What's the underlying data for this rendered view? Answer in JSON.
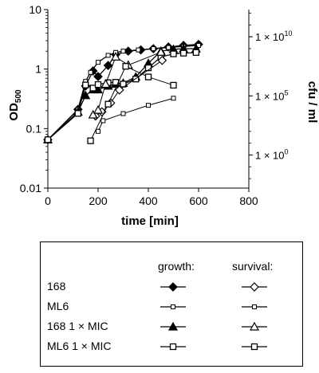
{
  "chart_data": {
    "type": "line",
    "xlabel": "time [min]",
    "ylabel_left": "OD",
    "ylabel_left_sub": "500",
    "ylabel_right": "cfu / ml",
    "xlim": [
      0,
      800
    ],
    "ylim_left": [
      0.01,
      10
    ],
    "left_scale": "log",
    "right_axis_log10_range": [
      -2.8,
      12.3
    ],
    "x_ticks": [
      "0",
      "200",
      "400",
      "600",
      "800"
    ],
    "y_ticks_left": [
      {
        "value": 10,
        "label": "10"
      },
      {
        "value": 1,
        "label": "1"
      },
      {
        "value": 0.1,
        "label": "0.1"
      },
      {
        "value": 0.01,
        "label": "0.01"
      }
    ],
    "y_ticks_right": [
      {
        "log10": 10,
        "base": "1 × 10",
        "exp": "10"
      },
      {
        "log10": 5,
        "base": "1 × 10",
        "exp": "5"
      },
      {
        "log10": 0,
        "base": "1 × 10",
        "exp": "0"
      }
    ],
    "grid": false,
    "series": [
      {
        "marker": "diamond-filled",
        "axis": "left",
        "x": [
          0,
          120,
          150,
          180,
          200,
          240,
          270,
          320,
          370,
          420,
          480,
          540,
          600
        ],
        "y": [
          0.065,
          0.21,
          0.52,
          0.93,
          0.75,
          1.15,
          1.75,
          2.0,
          2.1,
          2.2,
          2.35,
          2.5,
          2.6
        ]
      },
      {
        "marker": "square-open-small",
        "axis": "left",
        "x": [
          0,
          120,
          150,
          170,
          200,
          240,
          270,
          300,
          360,
          420,
          480,
          540,
          600
        ],
        "y": [
          0.065,
          0.21,
          0.62,
          0.88,
          1.3,
          1.7,
          1.9,
          2.0,
          2.1,
          2.2,
          2.3,
          2.4,
          2.5
        ]
      },
      {
        "marker": "triangle-filled",
        "axis": "left",
        "x": [
          0,
          120,
          150,
          180,
          200,
          240,
          270,
          300,
          350,
          400,
          450,
          500,
          540,
          590
        ],
        "y": [
          0.065,
          0.19,
          0.36,
          0.45,
          0.45,
          0.52,
          0.56,
          0.58,
          0.74,
          1.25,
          2.0,
          2.15,
          2.2,
          2.2
        ]
      },
      {
        "marker": "square-open",
        "axis": "left",
        "x": [
          0,
          120,
          150,
          180,
          200,
          240,
          270,
          300,
          350,
          400,
          450,
          500,
          540,
          590
        ],
        "y": [
          0.065,
          0.18,
          0.54,
          0.48,
          0.55,
          0.59,
          0.6,
          0.56,
          0.68,
          1.05,
          1.6,
          1.8,
          1.85,
          1.9
        ]
      },
      {
        "marker": "diamond-open",
        "axis": "right",
        "x": [
          190,
          215,
          250,
          285,
          455
        ],
        "log10_cfu": [
          3.3,
          3.65,
          4.4,
          5.5,
          8.0
        ]
      },
      {
        "marker": "square-open-small",
        "axis": "right",
        "x": [
          200,
          220,
          300,
          400,
          500
        ],
        "log10_cfu": [
          2.0,
          2.9,
          3.5,
          4.2,
          4.8
        ]
      },
      {
        "marker": "triangle-open",
        "axis": "right",
        "x": [
          180,
          200,
          230,
          270,
          320,
          450
        ],
        "log10_cfu": [
          3.4,
          3.8,
          6.0,
          8.3,
          7.6,
          8.7
        ]
      },
      {
        "marker": "square-open",
        "axis": "right",
        "x": [
          170,
          240,
          310,
          400,
          500
        ],
        "log10_cfu": [
          1.2,
          4.3,
          7.5,
          6.6,
          5.9
        ]
      }
    ]
  },
  "legend": {
    "header_growth": "growth:",
    "header_survival": "survival:",
    "rows": [
      {
        "label": "168",
        "growth_marker": "diamond-filled",
        "survival_marker": "diamond-open"
      },
      {
        "label": "ML6",
        "growth_marker": "square-open-small",
        "survival_marker": "square-open-small"
      },
      {
        "label": "168 1 × MIC",
        "growth_marker": "triangle-filled",
        "survival_marker": "triangle-open"
      },
      {
        "label": "ML6 1 × MIC",
        "growth_marker": "square-open",
        "survival_marker": "square-open"
      }
    ]
  }
}
